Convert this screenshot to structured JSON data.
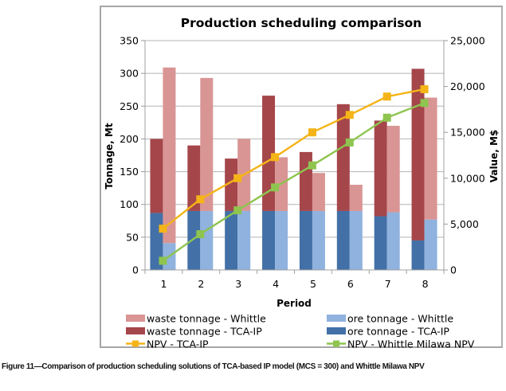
{
  "caption": "Figure 11—Comparison of production scheduling solutions of TCA-based IP model (MCS = 300) and Whittle Milawa NPV",
  "chart_data": {
    "type": "bar",
    "subtype": "stacked-bar-with-line-secondary-axis",
    "title": "Production scheduling comparison",
    "xlabel": "Period",
    "ylabel": "Tonnage, Mt",
    "y2label": "Value, M$",
    "categories": [
      "1",
      "2",
      "3",
      "4",
      "5",
      "6",
      "7",
      "8"
    ],
    "ylim": [
      0,
      350
    ],
    "yticks": [
      0,
      50,
      100,
      150,
      200,
      250,
      300,
      350
    ],
    "ytick_labels": [
      "0",
      "50",
      "100",
      "150",
      "200",
      "250",
      "300",
      "350"
    ],
    "y2lim": [
      0,
      25000
    ],
    "y2ticks": [
      0,
      5000,
      10000,
      15000,
      20000,
      25000
    ],
    "y2tick_labels": [
      "0",
      "5,000",
      "10,000",
      "15,000",
      "20,000",
      "25,000"
    ],
    "grid": true,
    "legend_position": "bottom",
    "bar_stacks": [
      {
        "stack": "TCA-IP",
        "series": [
          {
            "name": "ore tonnage - TCA-IP",
            "color": "#4270a7",
            "values": [
              87,
              90,
              90,
              90,
              90,
              90,
              82,
              45
            ]
          },
          {
            "name": "waste tonnage - TCA-IP",
            "color": "#a5464b",
            "values": [
              113,
              100,
              80,
              176,
              90,
              163,
              146,
              262
            ]
          }
        ]
      },
      {
        "stack": "Whittle",
        "series": [
          {
            "name": "ore tonnage - Whittle",
            "color": "#8fb2de",
            "values": [
              41,
              90,
              90,
              90,
              90,
              90,
              88,
              77
            ]
          },
          {
            "name": "waste tonnage - Whittle",
            "color": "#d99594",
            "values": [
              268,
              203,
              110,
              82,
              58,
              40,
              132,
              186
            ]
          }
        ]
      }
    ],
    "lines": [
      {
        "name": "NPV - TCA-IP",
        "axis": "secondary",
        "color": "#f5b417",
        "values": [
          4500,
          7700,
          10000,
          12300,
          15000,
          16900,
          18900,
          19700
        ]
      },
      {
        "name": "NPV - Whittle Milawa NPV",
        "axis": "secondary",
        "color": "#8ec44f",
        "values": [
          1000,
          3900,
          6500,
          9000,
          11400,
          13900,
          16600,
          18200
        ]
      }
    ],
    "legend": [
      {
        "label": "waste tonnage - Whittle",
        "kind": "box",
        "color": "#d99594"
      },
      {
        "label": "ore tonnage - Whittle",
        "kind": "box",
        "color": "#8fb2de"
      },
      {
        "label": "waste tonnage - TCA-IP",
        "kind": "box",
        "color": "#a5464b"
      },
      {
        "label": "ore tonnage - TCA-IP",
        "kind": "box",
        "color": "#4270a7"
      },
      {
        "label": "NPV - TCA-IP",
        "kind": "line",
        "color": "#f5b417"
      },
      {
        "label": "NPV - Whittle Milawa NPV",
        "kind": "line",
        "color": "#8ec44f"
      }
    ]
  }
}
